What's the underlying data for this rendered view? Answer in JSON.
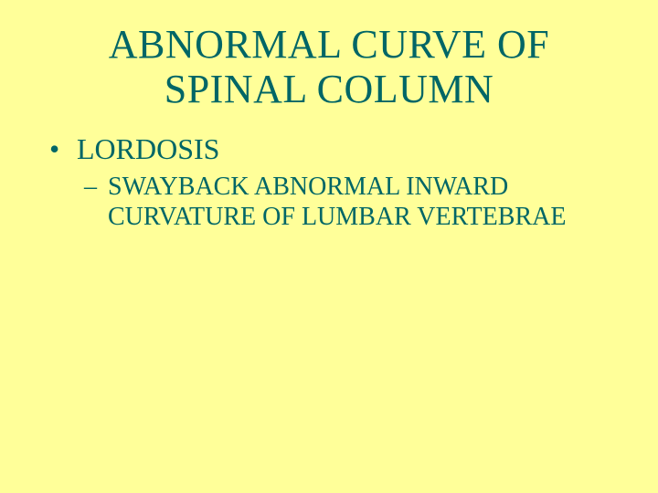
{
  "colors": {
    "background": "#ffff99",
    "text": "#006666"
  },
  "title": "ABNORMAL CURVE OF\nSPINAL COLUMN",
  "title_fontsize": 44,
  "bullet": {
    "marker": "•",
    "label": "LORDOSIS",
    "fontsize": 32
  },
  "sub": {
    "marker": "–",
    "text": "SWAYBACK  ABNORMAL INWARD CURVATURE OF LUMBAR VERTEBRAE",
    "fontsize": 28
  }
}
